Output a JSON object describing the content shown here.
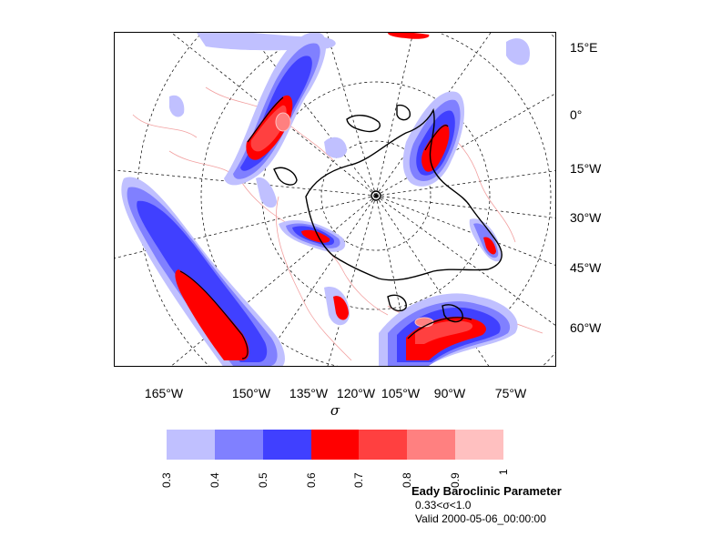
{
  "figure": {
    "x_axis_symbol": "σ",
    "bottom_longitude_labels": [
      "165°W",
      "150°W",
      "135°W",
      "120°W",
      "105°W",
      "90°W",
      "75°W"
    ],
    "right_labels": [
      "15°E",
      "0°",
      "15°W",
      "30°W",
      "45°W",
      "60°W"
    ]
  },
  "colorbar": {
    "colors": [
      "#c0c0ff",
      "#8080ff",
      "#4040ff",
      "#ff0000",
      "#ff4040",
      "#ff8080",
      "#ffc0c0"
    ],
    "tick_labels": [
      "0.3",
      "0.4",
      "0.5",
      "0.6",
      "0.7",
      "0.8",
      "0.9",
      "1"
    ]
  },
  "caption": {
    "title": "Eady Baroclinic Parameter",
    "levels": "0.33<σ<1.0",
    "valid": "Valid 2000-05-06_00:00:00"
  },
  "style": {
    "coastline_color": "#f2a0a0",
    "land_contour_color": "#000000",
    "graticule_color": "#000000"
  }
}
